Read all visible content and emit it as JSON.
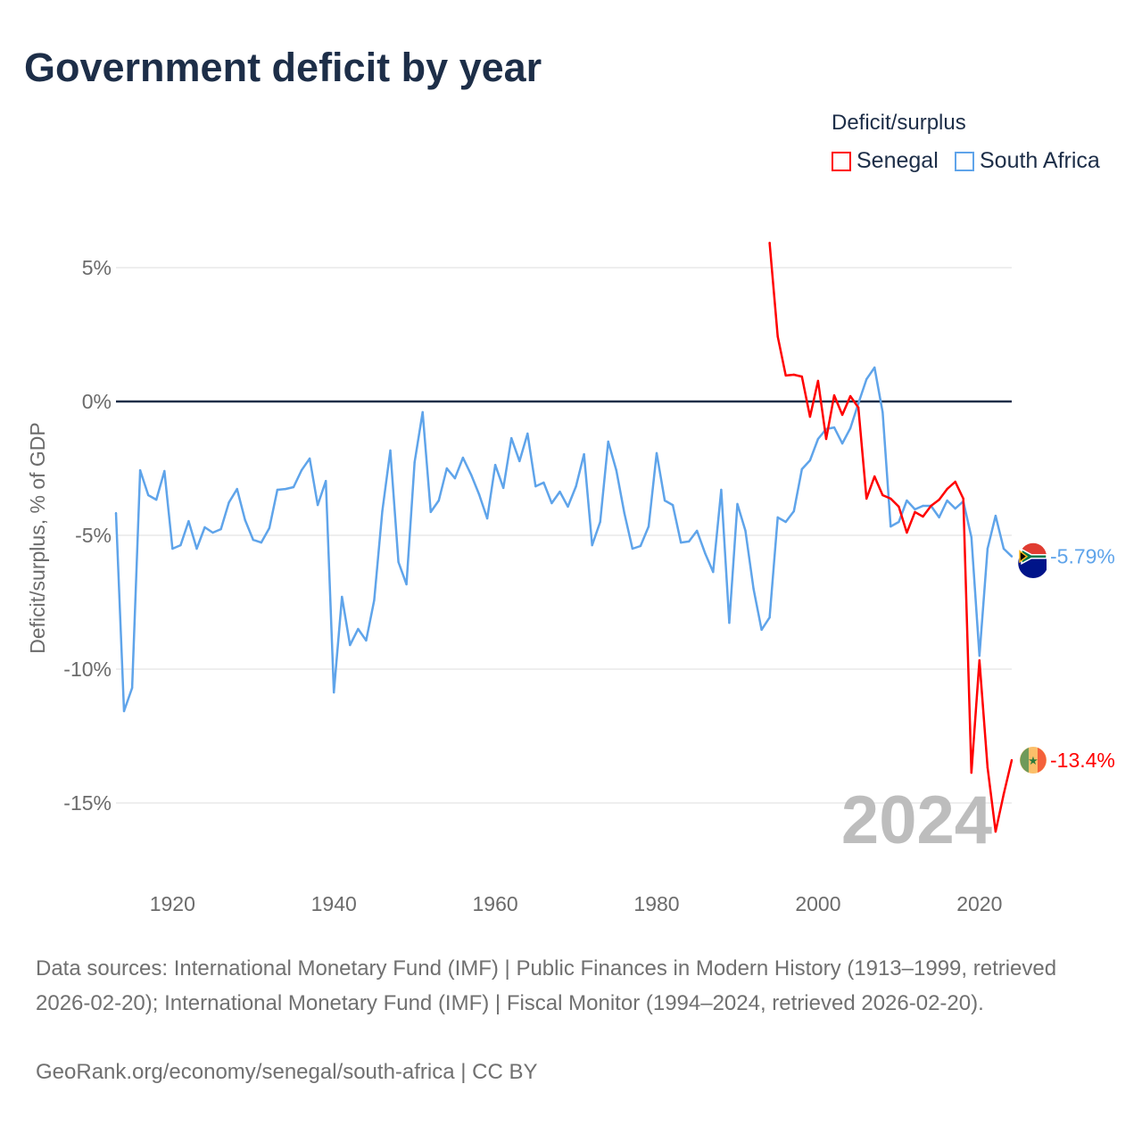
{
  "title": "Government deficit by year",
  "legend": {
    "title": "Deficit/surplus",
    "items": [
      {
        "name": "Senegal",
        "color": "#ff0000"
      },
      {
        "name": "South Africa",
        "color": "#5fa4ea"
      }
    ]
  },
  "footer": {
    "sources": "Data sources: International Monetary Fund (IMF) | Public Finances in Modern History (1913–1999, retrieved 2026-02-20); International Monetary Fund (IMF) | Fiscal Monitor (1994–2024, retrieved 2026-02-20).",
    "credit": "GeoRank.org/economy/senegal/south-africa | CC BY"
  },
  "chart_data": {
    "type": "line",
    "title": "Government deficit by year",
    "xlabel": "",
    "ylabel": "Deficit/surplus, % of GDP",
    "xlim": [
      1913,
      2024
    ],
    "ylim": [
      -17.5,
      6.5
    ],
    "x_ticks": [
      1920,
      1940,
      1960,
      1980,
      2000,
      2020
    ],
    "y_ticks": [
      5,
      0,
      -5,
      -10,
      -15
    ],
    "y_tick_labels": [
      "5%",
      "0%",
      "-5%",
      "-10%",
      "-15%"
    ],
    "grid": true,
    "legend_position": "top-right",
    "year_watermark": "2024",
    "series": [
      {
        "name": "South Africa",
        "color": "#5fa4ea",
        "end_label": "-5.79%",
        "start_year": 1913,
        "values": [
          -4.17,
          -11.57,
          -10.7,
          -2.57,
          -3.5,
          -3.67,
          -2.6,
          -5.5,
          -5.37,
          -4.47,
          -5.5,
          -4.7,
          -4.9,
          -4.77,
          -3.77,
          -3.27,
          -4.43,
          -5.17,
          -5.27,
          -4.73,
          -3.3,
          -3.27,
          -3.2,
          -2.57,
          -2.13,
          -3.87,
          -2.97,
          -10.87,
          -7.3,
          -9.1,
          -8.5,
          -8.93,
          -7.43,
          -4.1,
          -1.83,
          -6.0,
          -6.83,
          -2.27,
          -0.4,
          -4.13,
          -3.7,
          -2.5,
          -2.87,
          -2.1,
          -2.73,
          -3.47,
          -4.37,
          -2.37,
          -3.23,
          -1.37,
          -2.23,
          -1.2,
          -3.17,
          -3.03,
          -3.8,
          -3.37,
          -3.93,
          -3.17,
          -1.97,
          -5.37,
          -4.5,
          -1.5,
          -2.57,
          -4.17,
          -5.5,
          -5.4,
          -4.67,
          -1.93,
          -3.7,
          -3.87,
          -5.27,
          -5.23,
          -4.83,
          -5.67,
          -6.37,
          -3.3,
          -8.27,
          -3.83,
          -4.83,
          -7.0,
          -8.53,
          -8.07,
          -4.33,
          -4.5,
          -4.1,
          -2.53,
          -2.2,
          -1.4,
          -1.03,
          -0.97,
          -1.57,
          -1.0,
          -0.07,
          0.83,
          1.27,
          -0.4,
          -4.67,
          -4.5,
          -3.7,
          -4.03,
          -3.9,
          -3.9,
          -4.33,
          -3.7,
          -4.0,
          -3.73,
          -5.07,
          -9.5,
          -5.5,
          -4.27,
          -5.5,
          -5.79
        ]
      },
      {
        "name": "Senegal",
        "color": "#ff0000",
        "end_label": "-13.4%",
        "start_year": 1994,
        "values": [
          5.93,
          2.43,
          0.97,
          1.0,
          0.93,
          -0.57,
          0.77,
          -1.4,
          0.23,
          -0.5,
          0.2,
          -0.23,
          -3.63,
          -2.8,
          -3.5,
          -3.63,
          -3.93,
          -4.9,
          -4.13,
          -4.3,
          -3.9,
          -3.67,
          -3.27,
          -3.0,
          -3.63,
          -13.87,
          -9.67,
          -13.67,
          -16.07,
          -14.67,
          -13.4
        ]
      }
    ]
  }
}
